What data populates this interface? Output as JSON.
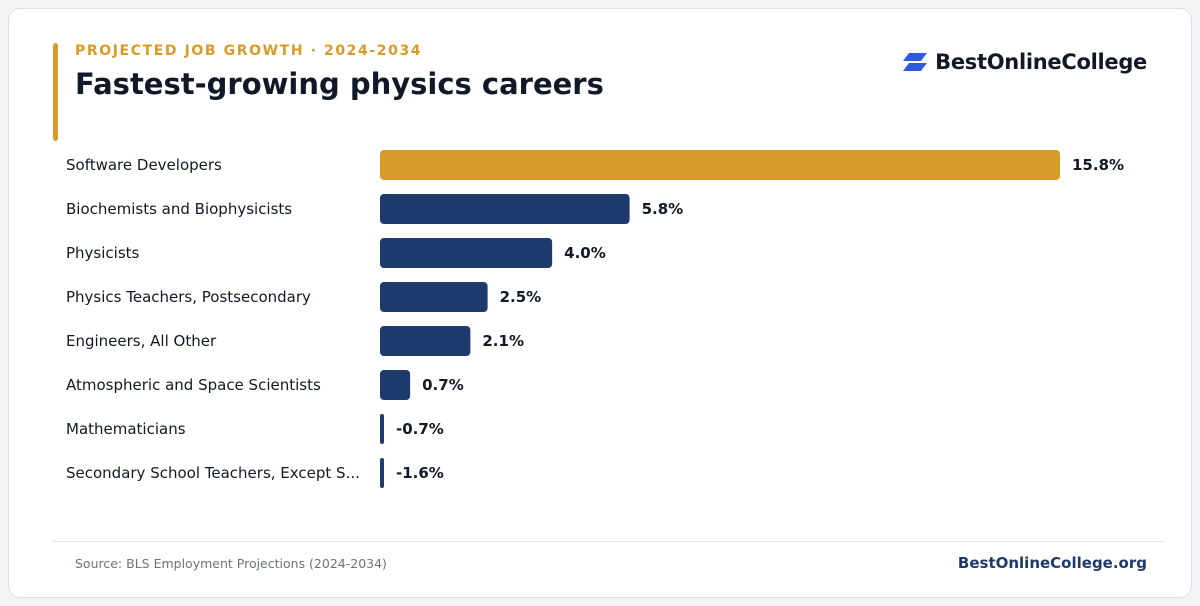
{
  "header": {
    "kicker": "PROJECTED JOB GROWTH · 2024-2034",
    "title": "Fastest-growing physics careers"
  },
  "brand": {
    "name": "BestOnlineCollege",
    "icon": "brand-logo-icon",
    "color": "#2f5be0"
  },
  "footer": {
    "source": "Source: BLS Employment Projections (2024-2034)",
    "site": "BestOnlineCollege.org"
  },
  "colors": {
    "accent": "#d99a29",
    "bar": "#1e3a6d",
    "highlight": "#d99a29",
    "label": "#111827"
  },
  "chart_data": {
    "type": "bar",
    "orientation": "horizontal",
    "categories": [
      "Software Developers",
      "Biochemists and Biophysicists",
      "Physicists",
      "Physics Teachers, Postsecondary",
      "Engineers, All Other",
      "Atmospheric and Space Scientists",
      "Mathematicians",
      "Secondary School Teachers, Except S..."
    ],
    "values": [
      15.8,
      5.8,
      4.0,
      2.5,
      2.1,
      0.7,
      -0.7,
      -1.6
    ],
    "value_labels": [
      "15.8%",
      "5.8%",
      "4.0%",
      "2.5%",
      "2.1%",
      "0.7%",
      "-0.7%",
      "-1.6%"
    ],
    "highlight_index": 0,
    "xlim": [
      0,
      15.8
    ],
    "grid": false,
    "title": "",
    "xlabel": "",
    "ylabel": ""
  }
}
